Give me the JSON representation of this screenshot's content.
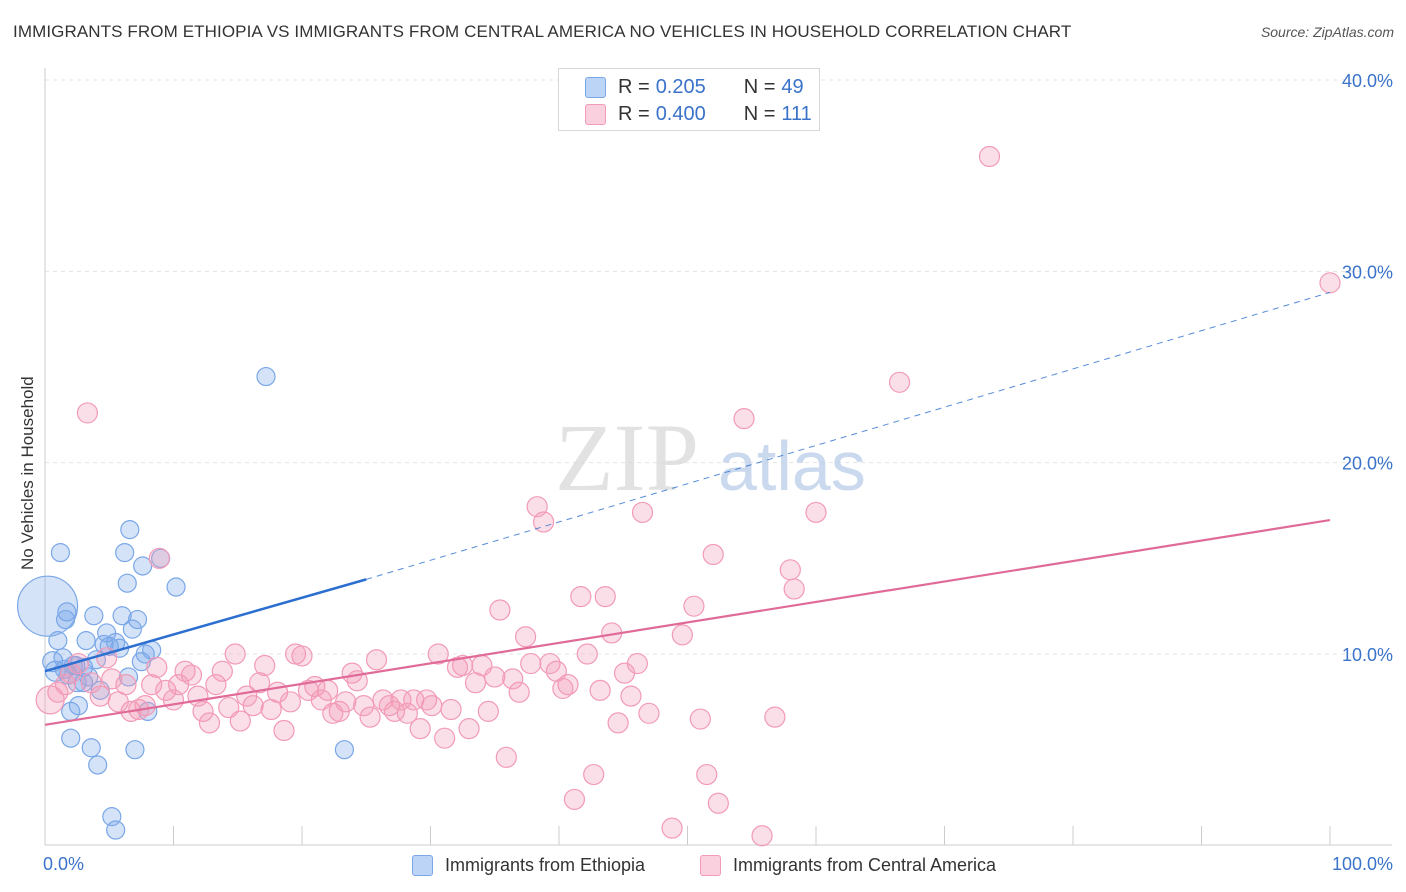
{
  "title": "IMMIGRANTS FROM ETHIOPIA VS IMMIGRANTS FROM CENTRAL AMERICA NO VEHICLES IN HOUSEHOLD CORRELATION CHART",
  "source": "Source: ZipAtlas.com",
  "watermark": {
    "zip": "ZIP",
    "atlas": "atlas"
  },
  "legend": {
    "r_label": "R =",
    "n_label": "N =",
    "rows": [
      {
        "r": "0.205",
        "n": "49"
      },
      {
        "r": "0.400",
        "n": "111"
      }
    ]
  },
  "chart_data": {
    "type": "scatter",
    "xlabel": "",
    "ylabel": "No Vehicles in Household",
    "xlim": [
      0,
      100
    ],
    "ylim": [
      0,
      41
    ],
    "x_tick_labels": [
      "0.0%",
      "100.0%"
    ],
    "y_tick_labels": [
      "10.0%",
      "20.0%",
      "30.0%",
      "40.0%"
    ],
    "y_ticks": [
      10,
      20,
      30,
      40
    ],
    "grid": true,
    "legend_position": "top-center",
    "series": [
      {
        "name": "Immigrants from Ethiopia",
        "color": "#7aa7e8",
        "line_color": "#2c6fd1",
        "trend": {
          "x0": 0,
          "y0": 9.1,
          "x1": 25,
          "y1": 13.9,
          "dashed_to_x": 100,
          "dashed_to_y": 28.9
        },
        "points": [
          [
            0.2,
            12.5,
            30
          ],
          [
            0.6,
            9.6,
            10
          ],
          [
            0.8,
            9.1,
            10
          ],
          [
            1.0,
            10.7,
            9
          ],
          [
            1.2,
            15.3,
            9
          ],
          [
            1.4,
            9.8,
            9
          ],
          [
            1.6,
            11.8,
            9
          ],
          [
            1.7,
            12.2,
            9
          ],
          [
            1.8,
            8.9,
            9
          ],
          [
            2.0,
            5.6,
            9
          ],
          [
            2.2,
            9.4,
            9
          ],
          [
            2.0,
            7.0,
            9
          ],
          [
            2.4,
            9.4,
            9
          ],
          [
            2.6,
            7.3,
            9
          ],
          [
            3.0,
            8.5,
            9
          ],
          [
            3.2,
            10.7,
            9
          ],
          [
            3.4,
            8.8,
            9
          ],
          [
            3.6,
            5.1,
            9
          ],
          [
            3.8,
            12.0,
            9
          ],
          [
            4.0,
            9.7,
            9
          ],
          [
            4.1,
            4.2,
            9
          ],
          [
            4.3,
            8.1,
            9
          ],
          [
            4.6,
            10.5,
            9
          ],
          [
            4.8,
            11.1,
            9
          ],
          [
            5.0,
            10.4,
            9
          ],
          [
            5.5,
            10.6,
            9
          ],
          [
            5.2,
            1.5,
            9
          ],
          [
            5.5,
            0.8,
            9
          ],
          [
            5.8,
            10.3,
            9
          ],
          [
            6.0,
            12.0,
            9
          ],
          [
            6.2,
            15.3,
            9
          ],
          [
            6.4,
            13.7,
            9
          ],
          [
            6.5,
            8.8,
            9
          ],
          [
            6.6,
            16.5,
            9
          ],
          [
            6.8,
            11.3,
            9
          ],
          [
            7.0,
            5.0,
            9
          ],
          [
            7.2,
            11.8,
            9
          ],
          [
            7.5,
            9.6,
            9
          ],
          [
            7.6,
            14.6,
            9
          ],
          [
            7.8,
            10.0,
            9
          ],
          [
            8.0,
            7.0,
            9
          ],
          [
            8.3,
            10.2,
            9
          ],
          [
            9.0,
            15.0,
            9
          ],
          [
            10.2,
            13.5,
            9
          ],
          [
            17.2,
            24.5,
            9
          ],
          [
            23.3,
            5.0,
            9
          ],
          [
            2.5,
            8.5,
            9
          ],
          [
            1.5,
            9.2,
            9
          ],
          [
            3.0,
            9.3,
            9
          ]
        ]
      },
      {
        "name": "Immigrants from Central America",
        "color": "#f29ab6",
        "line_color": "#e06b98",
        "trend": {
          "x0": 0,
          "y0": 6.3,
          "x1": 100,
          "y1": 17.0
        },
        "points": [
          [
            0.4,
            7.6,
            14
          ],
          [
            1.0,
            8.0,
            10
          ],
          [
            1.6,
            8.4,
            10
          ],
          [
            2.0,
            9.0,
            10
          ],
          [
            2.6,
            9.5,
            10
          ],
          [
            3.3,
            22.6,
            10
          ],
          [
            3.6,
            8.5,
            10
          ],
          [
            4.3,
            7.8,
            10
          ],
          [
            4.8,
            9.8,
            10
          ],
          [
            5.2,
            8.7,
            10
          ],
          [
            5.7,
            7.5,
            10
          ],
          [
            6.3,
            8.4,
            10
          ],
          [
            6.7,
            7.0,
            10
          ],
          [
            7.3,
            7.1,
            10
          ],
          [
            7.8,
            7.3,
            10
          ],
          [
            8.3,
            8.4,
            10
          ],
          [
            8.7,
            9.3,
            10
          ],
          [
            8.9,
            15.0,
            10
          ],
          [
            9.4,
            8.1,
            10
          ],
          [
            10.0,
            7.6,
            10
          ],
          [
            10.4,
            8.4,
            10
          ],
          [
            10.9,
            9.1,
            10
          ],
          [
            11.4,
            8.9,
            10
          ],
          [
            11.9,
            7.8,
            10
          ],
          [
            12.3,
            7.0,
            10
          ],
          [
            12.8,
            6.4,
            10
          ],
          [
            13.3,
            8.4,
            10
          ],
          [
            13.8,
            9.1,
            10
          ],
          [
            14.3,
            7.2,
            10
          ],
          [
            14.8,
            10.0,
            10
          ],
          [
            15.2,
            6.5,
            10
          ],
          [
            15.7,
            7.8,
            10
          ],
          [
            16.2,
            7.3,
            10
          ],
          [
            16.7,
            8.5,
            10
          ],
          [
            17.1,
            9.4,
            10
          ],
          [
            17.6,
            7.1,
            10
          ],
          [
            18.1,
            8.0,
            10
          ],
          [
            18.6,
            6.0,
            10
          ],
          [
            19.1,
            7.5,
            10
          ],
          [
            19.5,
            10.0,
            10
          ],
          [
            20.0,
            9.9,
            10
          ],
          [
            20.5,
            8.1,
            10
          ],
          [
            21.0,
            8.3,
            10
          ],
          [
            21.5,
            7.6,
            10
          ],
          [
            22.0,
            8.1,
            10
          ],
          [
            22.4,
            6.9,
            10
          ],
          [
            22.9,
            7.0,
            10
          ],
          [
            23.4,
            7.5,
            10
          ],
          [
            23.9,
            9.0,
            10
          ],
          [
            24.3,
            8.6,
            10
          ],
          [
            24.8,
            7.3,
            10
          ],
          [
            25.3,
            6.7,
            10
          ],
          [
            25.8,
            9.7,
            10
          ],
          [
            26.3,
            7.6,
            10
          ],
          [
            26.8,
            7.3,
            10
          ],
          [
            27.2,
            7.0,
            10
          ],
          [
            27.7,
            7.6,
            10
          ],
          [
            28.2,
            6.9,
            10
          ],
          [
            28.7,
            7.6,
            10
          ],
          [
            29.2,
            6.1,
            10
          ],
          [
            29.7,
            7.6,
            10
          ],
          [
            30.1,
            7.3,
            10
          ],
          [
            30.6,
            10.0,
            10
          ],
          [
            31.1,
            5.6,
            10
          ],
          [
            31.6,
            7.1,
            10
          ],
          [
            32.1,
            9.3,
            10
          ],
          [
            32.5,
            9.4,
            10
          ],
          [
            33.0,
            6.1,
            10
          ],
          [
            33.5,
            8.5,
            10
          ],
          [
            34.0,
            9.4,
            10
          ],
          [
            34.5,
            7.0,
            10
          ],
          [
            35.0,
            8.8,
            10
          ],
          [
            35.4,
            12.3,
            10
          ],
          [
            35.9,
            4.6,
            10
          ],
          [
            36.4,
            8.7,
            10
          ],
          [
            36.9,
            8.0,
            10
          ],
          [
            37.4,
            10.9,
            10
          ],
          [
            37.8,
            9.5,
            10
          ],
          [
            38.3,
            17.7,
            10
          ],
          [
            38.8,
            16.9,
            10
          ],
          [
            39.3,
            9.5,
            10
          ],
          [
            39.8,
            9.1,
            10
          ],
          [
            40.3,
            8.2,
            10
          ],
          [
            40.7,
            8.4,
            10
          ],
          [
            41.2,
            2.4,
            10
          ],
          [
            41.7,
            13.0,
            10
          ],
          [
            42.2,
            10.0,
            10
          ],
          [
            42.7,
            3.7,
            10
          ],
          [
            43.2,
            8.1,
            10
          ],
          [
            43.6,
            13.0,
            10
          ],
          [
            44.1,
            11.1,
            10
          ],
          [
            44.6,
            6.4,
            10
          ],
          [
            45.1,
            9.0,
            10
          ],
          [
            45.6,
            7.8,
            10
          ],
          [
            46.1,
            9.5,
            10
          ],
          [
            46.5,
            17.4,
            10
          ],
          [
            47.0,
            6.9,
            10
          ],
          [
            48.8,
            0.9,
            10
          ],
          [
            49.6,
            11.0,
            10
          ],
          [
            50.5,
            12.5,
            10
          ],
          [
            51.0,
            6.6,
            10
          ],
          [
            51.5,
            3.7,
            10
          ],
          [
            52.0,
            15.2,
            10
          ],
          [
            52.4,
            2.2,
            10
          ],
          [
            54.4,
            22.3,
            10
          ],
          [
            55.8,
            0.5,
            10
          ],
          [
            56.8,
            6.7,
            10
          ],
          [
            58.0,
            14.4,
            10
          ],
          [
            58.3,
            13.4,
            10
          ],
          [
            60.0,
            17.4,
            10
          ],
          [
            66.5,
            24.2,
            10
          ],
          [
            73.5,
            36.0,
            10
          ],
          [
            100.0,
            29.4,
            10
          ]
        ]
      }
    ]
  }
}
